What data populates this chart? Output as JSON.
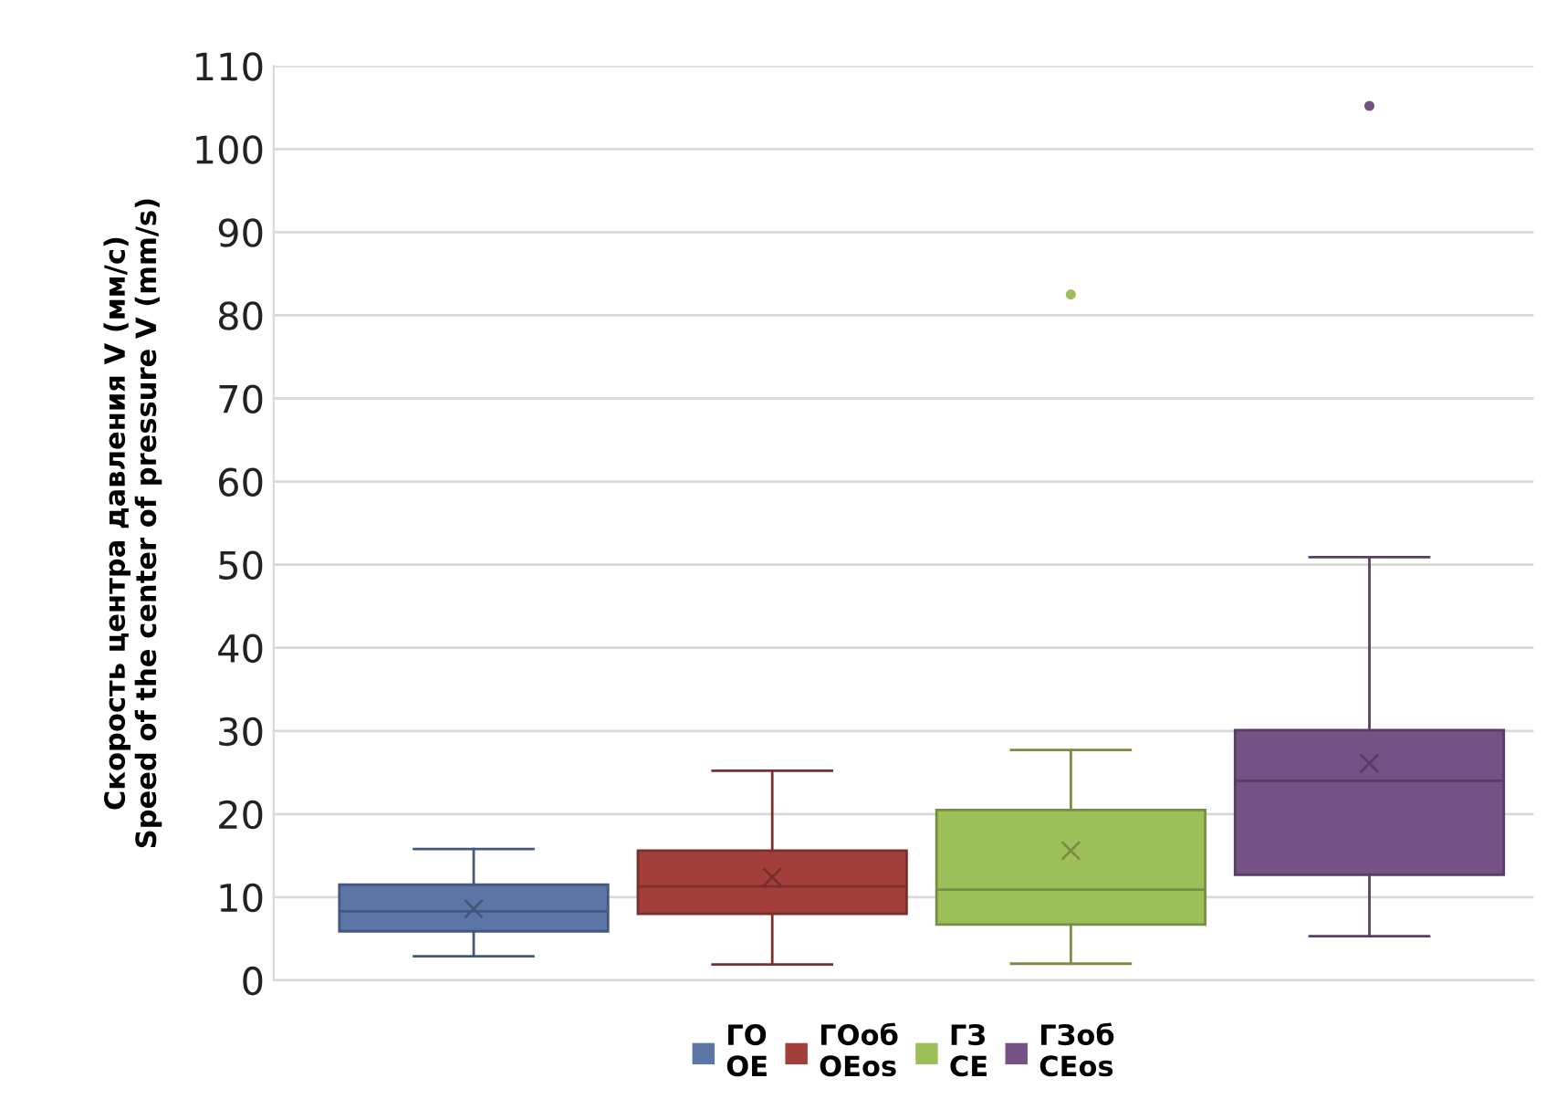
{
  "chart_data": {
    "type": "box",
    "ylabel": "Скорость центра давления V (мм/с)\nSpeed of the center of pressure V (mm/s)",
    "categories": [
      null
    ],
    "ylim": [
      0,
      110
    ],
    "yticks": [
      0,
      10,
      20,
      30,
      40,
      50,
      60,
      70,
      80,
      90,
      100,
      110
    ],
    "grid": "y",
    "legend": "bottom",
    "series": [
      {
        "name": "ГО\nOE",
        "color": "#5b75a6",
        "boxes": [
          {
            "low": 2.9,
            "q1": 5.9,
            "median": 8.3,
            "q3": 11.5,
            "high": 15.8,
            "mean": 8.6
          }
        ]
      },
      {
        "name": "ГОоб\nOEos",
        "color": "#a23f3b",
        "boxes": [
          {
            "low": 1.9,
            "q1": 8.0,
            "median": 11.3,
            "q3": 15.6,
            "high": 25.2,
            "mean": 12.4
          }
        ]
      },
      {
        "name": "ГЗ\nCE",
        "color": "#9dbf5a",
        "boxes": [
          {
            "low": 2.0,
            "q1": 6.7,
            "median": 10.9,
            "q3": 20.5,
            "high": 27.7,
            "mean": 15.6,
            "outliers": [
              82.5
            ]
          }
        ]
      },
      {
        "name": "ГЗоб\nCEos",
        "color": "#765186",
        "boxes": [
          {
            "low": 5.3,
            "q1": 12.7,
            "median": 24.0,
            "q3": 30.1,
            "high": 50.9,
            "mean": 26.1,
            "outliers": [
              105.2
            ]
          }
        ]
      }
    ]
  }
}
